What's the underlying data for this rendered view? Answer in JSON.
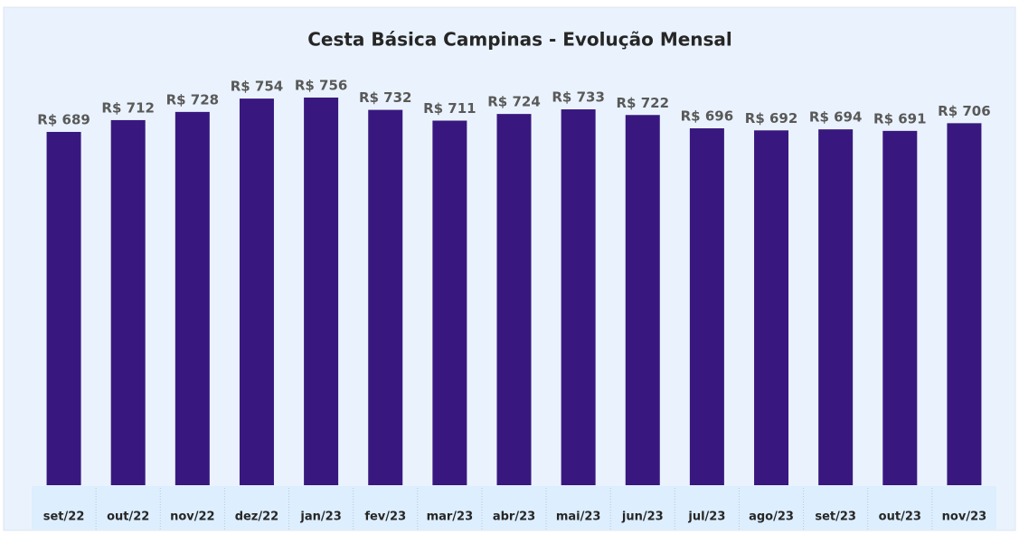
{
  "chart_data": {
    "type": "bar",
    "title": "Cesta Básica Campinas - Evolução Mensal",
    "categories": [
      "set/22",
      "out/22",
      "nov/22",
      "dez/22",
      "jan/23",
      "fev/23",
      "mar/23",
      "abr/23",
      "mai/23",
      "jun/23",
      "jul/23",
      "ago/23",
      "set/23",
      "out/23",
      "nov/23"
    ],
    "values": [
      689,
      712,
      728,
      754,
      756,
      732,
      711,
      724,
      733,
      722,
      696,
      692,
      694,
      691,
      706
    ],
    "value_labels": [
      "R$ 689",
      "R$ 712",
      "R$ 728",
      "R$ 754",
      "R$ 756",
      "R$ 732",
      "R$ 711",
      "R$ 724",
      "R$ 733",
      "R$ 722",
      "R$ 696",
      "R$ 692",
      "R$ 694",
      "R$ 691",
      "R$ 706"
    ],
    "color": "#38187f",
    "ylim": [
      0,
      800
    ]
  }
}
